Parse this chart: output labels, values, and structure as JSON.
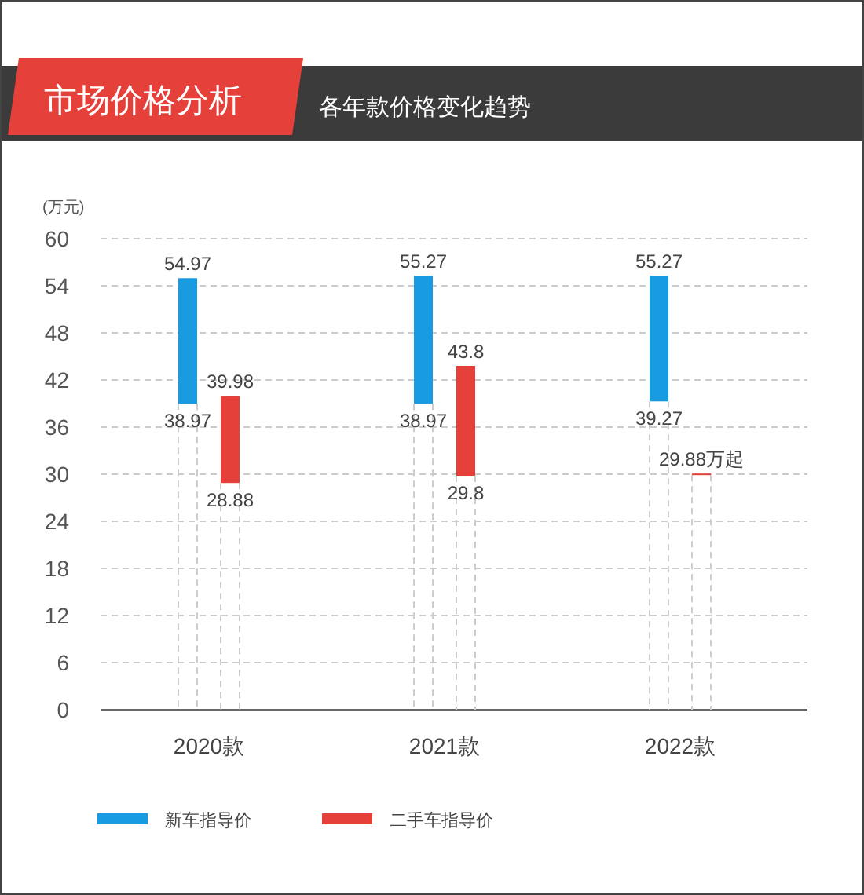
{
  "chart_data": {
    "type": "bar",
    "title": "市场价格分析",
    "subtitle": "各年款价格变化趋势",
    "ylabel": "(万元)",
    "categories": [
      "2020款",
      "2021款",
      "2022款"
    ],
    "series": [
      {
        "name": "新车指导价",
        "color": "#189be0",
        "base": [
          38.97,
          38.97,
          39.27
        ],
        "values": [
          16,
          16.3,
          16
        ],
        "value_labels": [
          "54.97",
          "55.27",
          "55.27"
        ]
      },
      {
        "name": "二手车指导价",
        "color": "#e5413a",
        "base": [
          28.88,
          29.8,
          29.88
        ],
        "values": [
          11.1,
          14,
          0
        ],
        "value_labels": [
          "39.98",
          "43.8",
          "29.88万起"
        ]
      }
    ],
    "ylim": [
      0,
      60
    ],
    "yticks": [
      0,
      6,
      12,
      18,
      24,
      30,
      36,
      42,
      48,
      54,
      60
    ],
    "grid": "y",
    "legend": "bottom",
    "annotations": [
      "38.97",
      "28.88",
      "38.97",
      "29.8",
      "39.27"
    ]
  }
}
